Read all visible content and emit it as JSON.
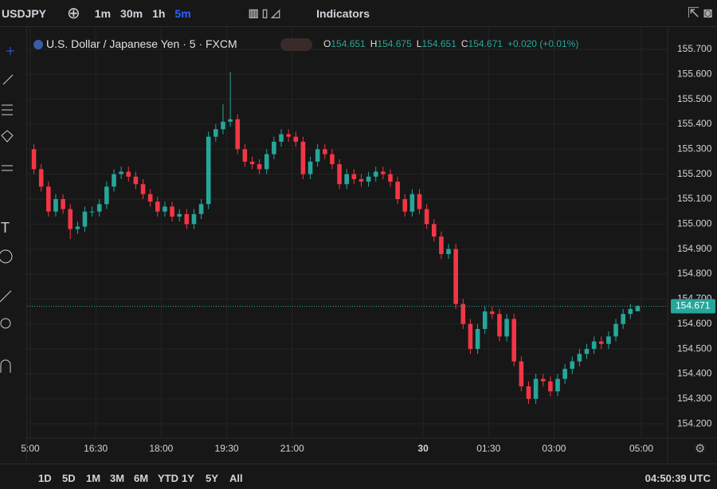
{
  "toolbar": {
    "symbol": "USDJPY",
    "intervals": [
      "1m",
      "30m",
      "1h",
      "5m"
    ],
    "indicators": "Indicators"
  },
  "legend": {
    "title": "U.S. Dollar / Japanese Yen · 5 · FXCM",
    "o_label": "O",
    "open": 154.651,
    "h_label": "H",
    "high": 154.675,
    "l_label": "L",
    "low": 154.651,
    "c_label": "C",
    "close": 154.671,
    "change": "+0.020 (+0.01%)"
  },
  "chart_data": {
    "type": "candlestick",
    "up_color": "#26a69a",
    "down_color": "#f23645",
    "grid": true,
    "ylim": [
      154.143,
      155.77
    ],
    "xlim": [
      0,
      84
    ],
    "last_price": 154.671,
    "yticks": [
      {
        "value": 155.7,
        "label": "155.700"
      },
      {
        "value": 155.6,
        "label": "155.600"
      },
      {
        "value": 155.5,
        "label": "155.500"
      },
      {
        "value": 155.4,
        "label": "155.400"
      },
      {
        "value": 155.3,
        "label": "155.300"
      },
      {
        "value": 155.2,
        "label": "155.200"
      },
      {
        "value": 155.1,
        "label": "155.100"
      },
      {
        "value": 155.0,
        "label": "155.000"
      },
      {
        "value": 154.9,
        "label": "154.900"
      },
      {
        "value": 154.8,
        "label": "154.800"
      },
      {
        "value": 154.7,
        "label": "154.700"
      },
      {
        "value": 154.6,
        "label": "154.600"
      },
      {
        "value": 154.5,
        "label": "154.500"
      },
      {
        "value": 154.4,
        "label": "154.400"
      },
      {
        "value": 154.3,
        "label": "154.300"
      },
      {
        "value": 154.2,
        "label": "154.200"
      }
    ],
    "xticks": [
      {
        "value": 0,
        "label": "5:00"
      },
      {
        "value": 9,
        "label": "16:30"
      },
      {
        "value": 18,
        "label": "18:00"
      },
      {
        "value": 27,
        "label": "19:30"
      },
      {
        "value": 36,
        "label": "21:00"
      },
      {
        "value": 54,
        "label": "30"
      },
      {
        "value": 63,
        "label": "01:30"
      },
      {
        "value": 72,
        "label": "03:00"
      },
      {
        "value": 84,
        "label": "05:00"
      }
    ],
    "ohlc": [
      [
        155.3,
        155.32,
        155.2,
        155.22
      ],
      [
        155.22,
        155.24,
        155.13,
        155.15
      ],
      [
        155.15,
        155.17,
        155.03,
        155.05
      ],
      [
        155.05,
        155.12,
        155.03,
        155.1
      ],
      [
        155.1,
        155.12,
        155.04,
        155.06
      ],
      [
        155.06,
        155.08,
        154.94,
        154.98
      ],
      [
        154.98,
        155.01,
        154.96,
        154.99
      ],
      [
        154.99,
        155.07,
        154.97,
        155.05
      ],
      [
        155.05,
        155.07,
        155.03,
        155.05
      ],
      [
        155.05,
        155.1,
        155.03,
        155.08
      ],
      [
        155.08,
        155.17,
        155.06,
        155.15
      ],
      [
        155.15,
        155.22,
        155.13,
        155.2
      ],
      [
        155.2,
        155.23,
        155.18,
        155.21
      ],
      [
        155.21,
        155.23,
        155.17,
        155.19
      ],
      [
        155.19,
        155.21,
        155.14,
        155.16
      ],
      [
        155.16,
        155.18,
        155.1,
        155.12
      ],
      [
        155.12,
        155.14,
        155.07,
        155.09
      ],
      [
        155.09,
        155.11,
        155.03,
        155.05
      ],
      [
        155.05,
        155.09,
        155.03,
        155.07
      ],
      [
        155.07,
        155.09,
        155.01,
        155.03
      ],
      [
        155.03,
        155.06,
        155.01,
        155.04
      ],
      [
        155.04,
        155.06,
        154.98,
        155.0
      ],
      [
        155.0,
        155.06,
        154.98,
        155.04
      ],
      [
        155.04,
        155.1,
        155.02,
        155.08
      ],
      [
        155.08,
        155.37,
        155.06,
        155.35
      ],
      [
        155.35,
        155.4,
        155.33,
        155.38
      ],
      [
        155.38,
        155.48,
        155.36,
        155.41
      ],
      [
        155.41,
        155.61,
        155.39,
        155.42
      ],
      [
        155.42,
        155.44,
        155.28,
        155.3
      ],
      [
        155.3,
        155.32,
        155.23,
        155.25
      ],
      [
        155.25,
        155.27,
        155.22,
        155.24
      ],
      [
        155.24,
        155.26,
        155.2,
        155.22
      ],
      [
        155.22,
        155.3,
        155.2,
        155.28
      ],
      [
        155.28,
        155.35,
        155.26,
        155.33
      ],
      [
        155.33,
        155.38,
        155.31,
        155.36
      ],
      [
        155.36,
        155.38,
        155.33,
        155.35
      ],
      [
        155.35,
        155.37,
        155.31,
        155.33
      ],
      [
        155.33,
        155.35,
        155.18,
        155.2
      ],
      [
        155.2,
        155.27,
        155.18,
        155.25
      ],
      [
        155.25,
        155.32,
        155.23,
        155.3
      ],
      [
        155.3,
        155.32,
        155.26,
        155.28
      ],
      [
        155.28,
        155.3,
        155.22,
        155.24
      ],
      [
        155.24,
        155.26,
        155.14,
        155.16
      ],
      [
        155.16,
        155.22,
        155.14,
        155.2
      ],
      [
        155.2,
        155.22,
        155.16,
        155.18
      ],
      [
        155.18,
        155.2,
        155.15,
        155.17
      ],
      [
        155.17,
        155.21,
        155.15,
        155.19
      ],
      [
        155.19,
        155.23,
        155.17,
        155.21
      ],
      [
        155.21,
        155.23,
        155.18,
        155.2
      ],
      [
        155.2,
        155.22,
        155.15,
        155.17
      ],
      [
        155.17,
        155.19,
        155.08,
        155.1
      ],
      [
        155.1,
        155.12,
        155.03,
        155.05
      ],
      [
        155.05,
        155.14,
        155.03,
        155.12
      ],
      [
        155.12,
        155.14,
        155.04,
        155.06
      ],
      [
        155.06,
        155.08,
        154.98,
        155.0
      ],
      [
        155.0,
        155.02,
        154.93,
        154.95
      ],
      [
        154.95,
        154.97,
        154.86,
        154.88
      ],
      [
        154.88,
        154.92,
        154.86,
        154.9
      ],
      [
        154.9,
        154.92,
        154.66,
        154.68
      ],
      [
        154.68,
        154.7,
        154.58,
        154.6
      ],
      [
        154.6,
        154.62,
        154.48,
        154.5
      ],
      [
        154.5,
        154.6,
        154.48,
        154.58
      ],
      [
        154.58,
        154.67,
        154.56,
        154.65
      ],
      [
        154.65,
        154.67,
        154.62,
        154.64
      ],
      [
        154.64,
        154.66,
        154.53,
        154.55
      ],
      [
        154.55,
        154.64,
        154.53,
        154.62
      ],
      [
        154.62,
        154.64,
        154.43,
        154.45
      ],
      [
        154.45,
        154.47,
        154.33,
        154.35
      ],
      [
        154.35,
        154.37,
        154.28,
        154.3
      ],
      [
        154.3,
        154.4,
        154.28,
        154.38
      ],
      [
        154.38,
        154.4,
        154.35,
        154.37
      ],
      [
        154.37,
        154.39,
        154.31,
        154.33
      ],
      [
        154.33,
        154.4,
        154.31,
        154.38
      ],
      [
        154.38,
        154.44,
        154.36,
        154.42
      ],
      [
        154.42,
        154.47,
        154.4,
        154.45
      ],
      [
        154.45,
        154.5,
        154.43,
        154.48
      ],
      [
        154.48,
        154.52,
        154.46,
        154.5
      ],
      [
        154.5,
        154.55,
        154.48,
        154.53
      ],
      [
        154.53,
        154.55,
        154.5,
        154.52
      ],
      [
        154.52,
        154.57,
        154.5,
        154.55
      ],
      [
        154.55,
        154.62,
        154.53,
        154.6
      ],
      [
        154.6,
        154.66,
        154.58,
        154.64
      ],
      [
        154.64,
        154.68,
        154.62,
        154.66
      ],
      [
        154.651,
        154.675,
        154.651,
        154.671
      ]
    ]
  },
  "footer": {
    "ranges": [
      "1D",
      "5D",
      "1M",
      "3M",
      "6M",
      "YTD",
      "1Y",
      "5Y",
      "All"
    ],
    "clock": "04:50:39 UTC"
  }
}
